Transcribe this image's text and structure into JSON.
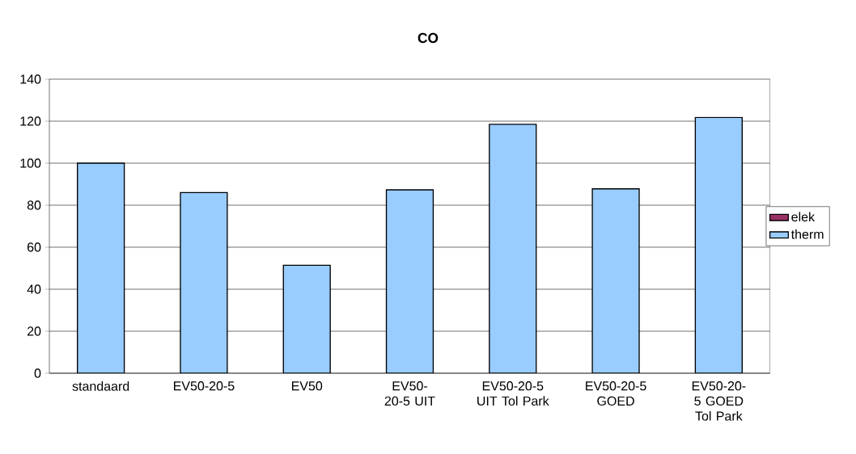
{
  "chart_data": {
    "type": "bar",
    "title": "CO",
    "stacked": true,
    "categories": [
      "standaard",
      "EV50-20-5",
      "EV50",
      "EV50-20-5 UIT",
      "EV50-20-5 UIT Tol Park",
      "EV50-20-5 GOED",
      "EV50-20-5 GOED Tol Park"
    ],
    "series": [
      {
        "name": "elek",
        "color": "#993366",
        "values": [
          0,
          0,
          0,
          0,
          0,
          0,
          0
        ]
      },
      {
        "name": "therm",
        "color": "#99ccff",
        "values": [
          100,
          86,
          51.4,
          87.3,
          118.5,
          87.8,
          121.8
        ]
      }
    ],
    "ylim": [
      0,
      140
    ],
    "yticks": [
      0,
      20,
      40,
      60,
      80,
      100,
      120,
      140
    ],
    "grid": "y",
    "legend": "right"
  }
}
